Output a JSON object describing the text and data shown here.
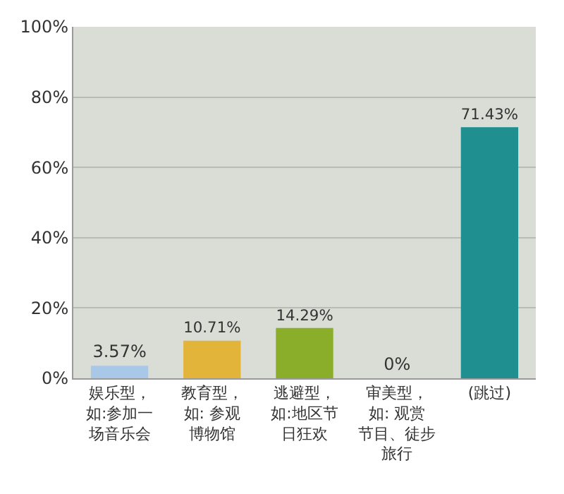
{
  "chart_data": {
    "type": "bar",
    "categories": [
      "娱乐型，如:参加一场音乐会",
      "教育型，如: 参观博物馆",
      "逃避型，如:地区节日狂欢",
      "审美型，如: 观赏节目、徒步旅行",
      "(跳过)"
    ],
    "values": [
      3.57,
      10.71,
      14.29,
      0,
      71.43
    ],
    "colors": [
      "#a9c8e8",
      "#e2b43a",
      "#8aae2a",
      "#f0a07e",
      "#1f8f90"
    ],
    "value_labels": [
      "3.57%",
      "10.71%",
      "14.29%",
      "0%",
      "71.43%"
    ],
    "ylim": [
      0,
      100
    ],
    "yticks": [
      {
        "value": 0,
        "label": "0%"
      },
      {
        "value": 20,
        "label": "20%"
      },
      {
        "value": 40,
        "label": "40%"
      },
      {
        "value": 60,
        "label": "60%"
      },
      {
        "value": 80,
        "label": "80%"
      },
      {
        "value": 100,
        "label": "100%"
      }
    ],
    "grid": "y",
    "legend": false
  }
}
